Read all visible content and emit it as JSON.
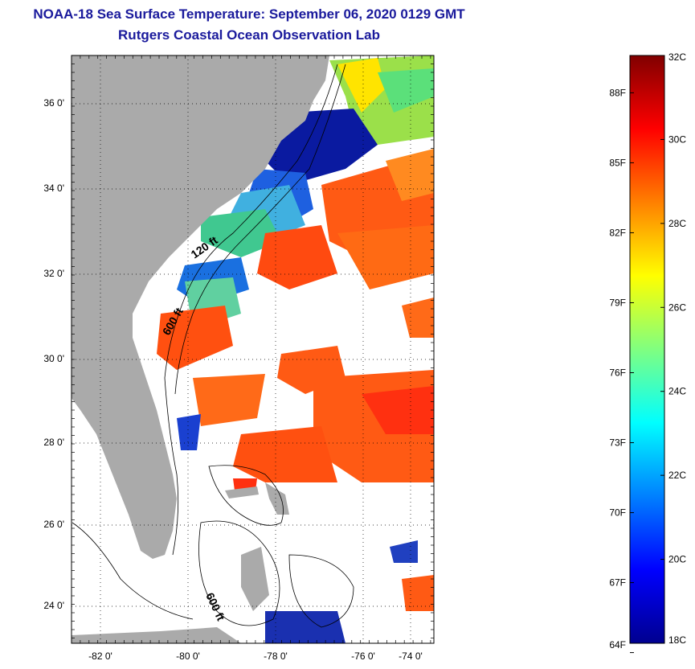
{
  "header": {
    "title": "NOAA-18 Sea Surface Temperature:  September 06, 2020 0129 GMT",
    "subtitle": "Rutgers Coastal Ocean Observation Lab"
  },
  "map": {
    "lat_ticks": [
      "36 0'",
      "34 0'",
      "32 0'",
      "30 0'",
      "28 0'",
      "26 0'",
      "24 0'"
    ],
    "lon_ticks": [
      "-82 0'",
      "-80 0'",
      "-78 0'",
      "-76 0'",
      "-74 0'"
    ],
    "lat_values": [
      36,
      34,
      32,
      30,
      28,
      26,
      24
    ],
    "lon_values": [
      -82,
      -80,
      -78,
      -76,
      -74
    ],
    "lat_range": [
      23,
      37.1
    ],
    "lon_range": [
      -83,
      -73
    ],
    "land_color": "#aaaaaa",
    "ocean_no_data_color": "#ffffff",
    "contour_labels": [
      "120 ft",
      "600 ft",
      "600 ft"
    ]
  },
  "colorbar": {
    "celsius_labels": [
      "32C",
      "30C",
      "28C",
      "26C",
      "24C",
      "22C",
      "20C",
      "18C"
    ],
    "celsius_values": [
      32,
      30,
      28,
      26,
      24,
      22,
      20,
      18
    ],
    "fahrenheit_labels": [
      "88F",
      "85F",
      "82F",
      "79F",
      "76F",
      "73F",
      "70F",
      "67F",
      "64F"
    ],
    "fahrenheit_values": [
      88,
      85,
      82,
      79,
      76,
      73,
      70,
      67,
      64
    ],
    "range_celsius": [
      18,
      32
    ],
    "colormap": [
      "#00008f",
      "#0000ff",
      "#0080ff",
      "#00ffff",
      "#80ff80",
      "#ffff00",
      "#ff8000",
      "#ff0000",
      "#800000"
    ]
  }
}
